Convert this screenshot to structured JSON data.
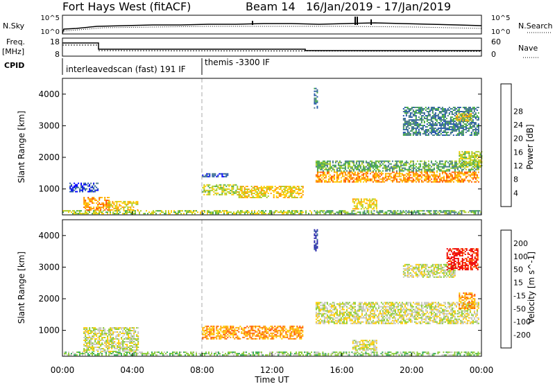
{
  "header": {
    "station": "Fort Hays West (fitACF)",
    "beam": "Beam 14",
    "date_range": "16/Jan/2019 - 17/Jan/2019"
  },
  "aux_panels": {
    "nsky_label": "N.Sky",
    "nsky_top": "10^5",
    "nsky_bottom": "10^0",
    "nsearch_label": "N.Search",
    "nsearch_top": "10^5",
    "nsearch_bottom": "10^0",
    "freq_label": "Freq.",
    "freq_unit": "[MHz]",
    "freq_top": "18",
    "freq_bottom": "8",
    "nave_label": "Nave",
    "nave_top": "60",
    "nave_bottom": "0",
    "cpid_label": "CPID",
    "cpid_segments": [
      {
        "name": "interleavedscan (fast) 191 IF",
        "start": 0,
        "end": 8
      },
      {
        "name": "themis -3300 IF",
        "start": 8,
        "end": 24
      }
    ]
  },
  "chart_data": [
    {
      "type": "heatmap",
      "name": "power",
      "x_range_hours": [
        0,
        24
      ],
      "ylim": [
        180,
        4500
      ],
      "ylabel": "Slant Range [km]",
      "yticks": [
        1000,
        2000,
        3000,
        4000
      ],
      "colorbar": {
        "label": "Power [dB]",
        "ticks": [
          "4",
          "8",
          "12",
          "16",
          "20",
          "24",
          "28"
        ],
        "colors": [
          "#0000ff",
          "#2255aa",
          "#447788",
          "#44aa44",
          "#aacc22",
          "#ffcc00",
          "#ff9900",
          "#ff5500",
          "#ee0000"
        ]
      },
      "regions": [
        {
          "t0": 0.0,
          "t1": 14.3,
          "r0": 200,
          "r1": 330,
          "level": 4
        },
        {
          "t0": 1.2,
          "t1": 2.7,
          "r0": 330,
          "r1": 750,
          "level": 6
        },
        {
          "t0": 2.6,
          "t1": 4.3,
          "r0": 330,
          "r1": 620,
          "level": 5
        },
        {
          "t0": 0.4,
          "t1": 2.0,
          "r0": 900,
          "r1": 1200,
          "level": 1
        },
        {
          "t0": 8.0,
          "t1": 10.0,
          "r0": 820,
          "r1": 1150,
          "level": 4
        },
        {
          "t0": 10.0,
          "t1": 13.8,
          "r0": 720,
          "r1": 1100,
          "level": 5
        },
        {
          "t0": 8.0,
          "t1": 9.5,
          "r0": 1380,
          "r1": 1500,
          "level": 1
        },
        {
          "t0": 14.5,
          "t1": 23.8,
          "r0": 1220,
          "r1": 1550,
          "level": 6
        },
        {
          "t0": 14.5,
          "t1": 23.8,
          "r0": 1550,
          "r1": 1900,
          "level": 3
        },
        {
          "t0": 22.7,
          "t1": 24.0,
          "r0": 1700,
          "r1": 2200,
          "level": 4
        },
        {
          "t0": 16.6,
          "t1": 18.0,
          "r0": 360,
          "r1": 700,
          "level": 5
        },
        {
          "t0": 14.4,
          "t1": 24.0,
          "r0": 200,
          "r1": 330,
          "level": 3
        },
        {
          "t0": 19.5,
          "t1": 23.8,
          "r0": 2700,
          "r1": 3600,
          "level": 2
        },
        {
          "t0": 22.5,
          "t1": 23.4,
          "r0": 3150,
          "r1": 3400,
          "level": 5
        },
        {
          "t0": 14.4,
          "t1": 14.6,
          "r0": 3500,
          "r1": 4200,
          "level": 2
        }
      ]
    },
    {
      "type": "heatmap",
      "name": "velocity",
      "x_range_hours": [
        0,
        24
      ],
      "ylim": [
        180,
        4500
      ],
      "ylabel": "Slant Range [km]",
      "yticks": [
        1000,
        2000,
        3000,
        4000
      ],
      "xlabel": "Time UT",
      "xticks": [
        "00:00",
        "04:00",
        "08:00",
        "12:00",
        "16:00",
        "20:00",
        "00:00"
      ],
      "colorbar": {
        "label": "Velocity [m s^-1]",
        "ticks": [
          "200",
          "100",
          "50",
          "15",
          "-15",
          "-50",
          "-100",
          "-200"
        ],
        "colors": [
          "#2222aa",
          "#336699",
          "#33aa55",
          "#88cc33",
          "#c8c8c0",
          "#ffcc00",
          "#ff9900",
          "#ff5500",
          "#ee0000"
        ]
      },
      "regions": [
        {
          "t0": 0.0,
          "t1": 14.3,
          "r0": 200,
          "r1": 330,
          "level": 3
        },
        {
          "t0": 1.2,
          "t1": 4.3,
          "r0": 330,
          "r1": 1100,
          "level": 4
        },
        {
          "t0": 8.0,
          "t1": 13.8,
          "r0": 720,
          "r1": 1150,
          "level": 6
        },
        {
          "t0": 14.5,
          "t1": 23.8,
          "r0": 1220,
          "r1": 1900,
          "level": 4
        },
        {
          "t0": 14.4,
          "t1": 24.0,
          "r0": 200,
          "r1": 330,
          "level": 3
        },
        {
          "t0": 22.7,
          "t1": 23.6,
          "r0": 1700,
          "r1": 2200,
          "level": 6
        },
        {
          "t0": 19.5,
          "t1": 22.5,
          "r0": 2700,
          "r1": 3100,
          "level": 4
        },
        {
          "t0": 22.0,
          "t1": 23.8,
          "r0": 2900,
          "r1": 3600,
          "level": 8
        },
        {
          "t0": 16.6,
          "t1": 18.0,
          "r0": 360,
          "r1": 700,
          "level": 4
        },
        {
          "t0": 14.4,
          "t1": 14.6,
          "r0": 3500,
          "r1": 4200,
          "level": 0
        }
      ]
    }
  ]
}
